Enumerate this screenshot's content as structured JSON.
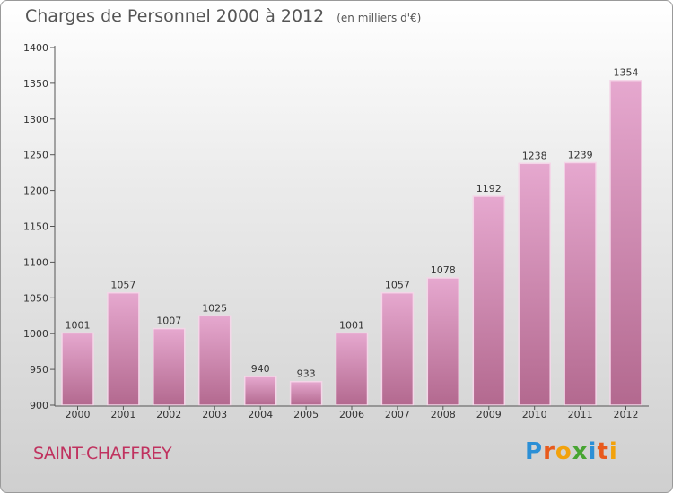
{
  "header": {
    "title": "Charges de Personnel 2000 à 2012",
    "subtitle": "(en milliers d'€)"
  },
  "footer": {
    "place": "SAINT-CHAFFREY",
    "logo_letters": [
      "P",
      "r",
      "o",
      "x",
      "i",
      "t",
      "i"
    ],
    "logo_colors": [
      "#2b8fd6",
      "#e85a1c",
      "#f2a20c",
      "#47a532",
      "#2b8fd6",
      "#e85a1c",
      "#f2a20c"
    ]
  },
  "colors": {
    "bar_top": "#e6a8cf",
    "bar_bottom": "#b3698f",
    "bar_edge": "#f4d6e8",
    "axis": "#555555"
  },
  "chart_data": {
    "type": "bar",
    "title": "Charges de Personnel 2000 à 2012",
    "subtitle": "(en milliers d'€)",
    "xlabel": "",
    "ylabel": "",
    "categories": [
      "2000",
      "2001",
      "2002",
      "2003",
      "2004",
      "2005",
      "2006",
      "2007",
      "2008",
      "2009",
      "2010",
      "2011",
      "2012"
    ],
    "values": [
      1001,
      1057,
      1007,
      1025,
      940,
      933,
      1001,
      1057,
      1078,
      1192,
      1238,
      1239,
      1354
    ],
    "ylim": [
      900,
      1400
    ],
    "yticks": [
      900,
      950,
      1000,
      1050,
      1100,
      1150,
      1200,
      1250,
      1300,
      1350,
      1400
    ],
    "grid": false,
    "legend": "none"
  }
}
